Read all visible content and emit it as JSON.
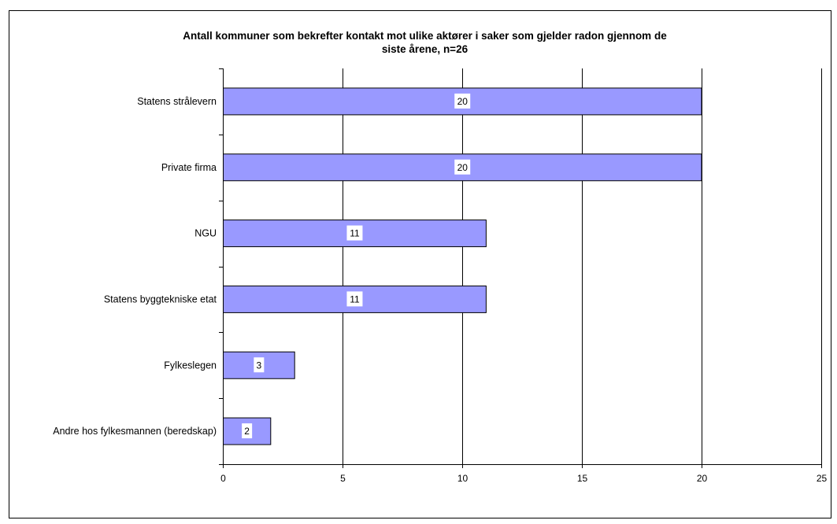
{
  "chart_data": {
    "type": "bar",
    "orientation": "horizontal",
    "title": "Antall kommuner som bekrefter kontakt mot ulike aktører i saker som gjelder radon gjennom de siste årene, n=26",
    "title_lines": [
      "Antall kommuner som bekrefter kontakt mot ulike aktører i saker som gjelder radon gjennom de",
      "siste årene, n=26"
    ],
    "categories": [
      "Statens strålevern",
      "Private firma",
      "NGU",
      "Statens byggtekniske etat",
      "Fylkeslegen",
      "Andre hos fylkesmannen (beredskap)"
    ],
    "values": [
      20,
      20,
      11,
      11,
      3,
      2
    ],
    "data_labels": [
      "20",
      "20",
      "11",
      "11",
      "3",
      "2"
    ],
    "xlim": [
      0,
      25
    ],
    "xticks": [
      0,
      5,
      10,
      15,
      20,
      25
    ],
    "xtick_labels": [
      "0",
      "5",
      "10",
      "15",
      "20",
      "25"
    ],
    "xlabel": "",
    "ylabel": "",
    "grid": true,
    "legend": false,
    "colors": {
      "bar_fill": "#9999ff",
      "bar_stroke": "#000000",
      "grid": "#000000",
      "label_box": "#ffffff"
    }
  }
}
